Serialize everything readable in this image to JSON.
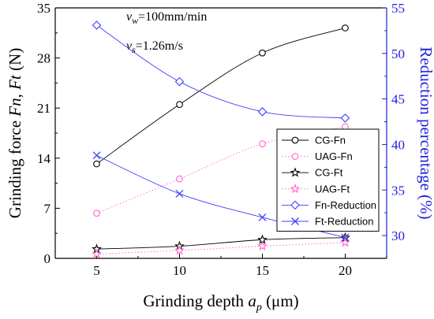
{
  "chart_data": {
    "type": "line",
    "x": [
      5,
      10,
      15,
      20
    ],
    "xlabel": {
      "text": "Grinding depth ",
      "sym": "a",
      "sub": "p",
      "unit": " (μm)"
    },
    "ylabel_left": {
      "p1": "Grinding force ",
      "s1": "Fn",
      "p2": ", ",
      "s2": "Ft",
      "p3": " (N)"
    },
    "ylabel_right": "Reduction percentage (%)",
    "xlim": [
      2.5,
      22.5
    ],
    "xticks": [
      5,
      10,
      15,
      20
    ],
    "ylim_left": [
      0,
      35
    ],
    "yticks_left": [
      0,
      7,
      14,
      21,
      28,
      35
    ],
    "ylim_right": [
      27.5,
      55
    ],
    "yticks_right": [
      30,
      35,
      40,
      45,
      50,
      55
    ],
    "annotations": [
      {
        "sym": "v",
        "sub": "w",
        "rest": "=100mm/min"
      },
      {
        "sym": "v",
        "sub": "s",
        "rest": "=1.26m/s"
      }
    ],
    "series": [
      {
        "name": "CG-Fn",
        "axis": "left",
        "marker": "circle",
        "color": "#000000",
        "dash": "solid",
        "values": [
          13.2,
          21.5,
          28.7,
          32.2
        ]
      },
      {
        "name": "UAG-Fn",
        "axis": "left",
        "marker": "circle",
        "color": "#ff66cc",
        "dash": "dotted",
        "values": [
          6.3,
          11.1,
          16.0,
          18.4
        ]
      },
      {
        "name": "CG-Ft",
        "axis": "left",
        "marker": "star",
        "color": "#000000",
        "dash": "solid",
        "values": [
          1.3,
          1.7,
          2.6,
          2.9
        ]
      },
      {
        "name": "UAG-Ft",
        "axis": "left",
        "marker": "star",
        "color": "#ff66cc",
        "dash": "dotted",
        "values": [
          0.6,
          1.1,
          1.7,
          2.2
        ]
      },
      {
        "name": "Fn-Reduction",
        "axis": "right",
        "marker": "diamond",
        "color": "#4040ff",
        "dash": "solid",
        "values": [
          53.1,
          46.9,
          43.6,
          42.9
        ]
      },
      {
        "name": "Ft-Reduction",
        "axis": "right",
        "marker": "x",
        "color": "#4040ff",
        "dash": "solid",
        "values": [
          38.8,
          34.6,
          32.0,
          29.8
        ]
      }
    ],
    "legend_position": "right",
    "colors": {
      "left_axis": "#000000",
      "right_axis": "#1f1fe0"
    }
  }
}
